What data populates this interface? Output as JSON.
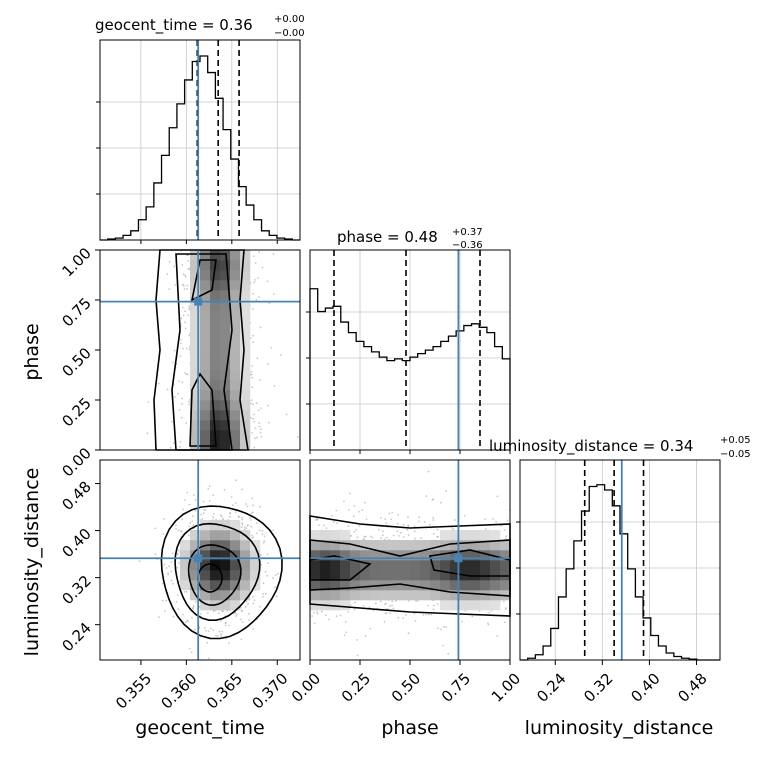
{
  "titles": {
    "geocent_time": {
      "lhs": "geocent_time = 0.36",
      "sup": "+0.00",
      "sub": "−0.00"
    },
    "phase": {
      "lhs": "phase = 0.48",
      "sup": "+0.37",
      "sub": "−0.36"
    },
    "luminosity_distance": {
      "lhs": "luminosity_distance = 0.34",
      "sup": "+0.05",
      "sub": "−0.05"
    }
  },
  "axis_labels": {
    "geocent_time": "geocent_time",
    "phase": "phase",
    "luminosity_distance": "luminosity_distance"
  },
  "colors": {
    "truth": "#4682b4",
    "hist": "#000000",
    "grid": "#c8c8c8",
    "scatter": "#9a9a9a"
  },
  "chart_data": {
    "type": "corner",
    "grid": true,
    "parameters": [
      "geocent_time",
      "phase",
      "luminosity_distance"
    ],
    "truths": {
      "geocent_time": 0.3613,
      "phase": 0.742,
      "luminosity_distance": 0.353
    },
    "quantiles": {
      "geocent_time": [
        0.3612,
        0.3635,
        0.3658
      ],
      "phase": [
        0.12,
        0.48,
        0.85
      ],
      "luminosity_distance": [
        0.29,
        0.34,
        0.39
      ]
    },
    "ranges": {
      "geocent_time": [
        0.3505,
        0.3725
      ],
      "phase": [
        0.0,
        1.0
      ],
      "luminosity_distance": [
        0.18,
        0.52
      ]
    },
    "ticks": {
      "geocent_time": [
        {
          "v": 0.355,
          "label": "0.355"
        },
        {
          "v": 0.36,
          "label": "0.360"
        },
        {
          "v": 0.365,
          "label": "0.365"
        },
        {
          "v": 0.37,
          "label": "0.370"
        }
      ],
      "phase": [
        {
          "v": 0.0,
          "label": "0.00"
        },
        {
          "v": 0.25,
          "label": "0.25"
        },
        {
          "v": 0.5,
          "label": "0.50"
        },
        {
          "v": 0.75,
          "label": "0.75"
        },
        {
          "v": 1.0,
          "label": "1.00"
        }
      ],
      "luminosity_distance": [
        {
          "v": 0.24,
          "label": "0.24"
        },
        {
          "v": 0.32,
          "label": "0.32"
        },
        {
          "v": 0.4,
          "label": "0.40"
        },
        {
          "v": 0.48,
          "label": "0.48"
        }
      ]
    },
    "histograms": {
      "geocent_time": [
        0.0,
        0.005,
        0.01,
        0.025,
        0.05,
        0.11,
        0.18,
        0.31,
        0.46,
        0.61,
        0.74,
        0.87,
        0.97,
        1.0,
        0.91,
        0.77,
        0.6,
        0.44,
        0.29,
        0.19,
        0.11,
        0.05,
        0.025,
        0.01,
        0.005,
        0.0
      ],
      "phase": [
        0.92,
        0.79,
        0.81,
        0.82,
        0.73,
        0.67,
        0.62,
        0.59,
        0.56,
        0.53,
        0.51,
        0.52,
        0.51,
        0.53,
        0.55,
        0.57,
        0.59,
        0.62,
        0.65,
        0.68,
        0.71,
        0.72,
        0.7,
        0.67,
        0.59,
        0.52
      ],
      "luminosity_distance": [
        0.0,
        0.01,
        0.03,
        0.08,
        0.18,
        0.36,
        0.52,
        0.68,
        0.85,
        0.99,
        1.0,
        0.97,
        0.88,
        0.72,
        0.52,
        0.36,
        0.24,
        0.14,
        0.08,
        0.04,
        0.02,
        0.01,
        0.005,
        0.0,
        0.0,
        0.0
      ]
    }
  }
}
